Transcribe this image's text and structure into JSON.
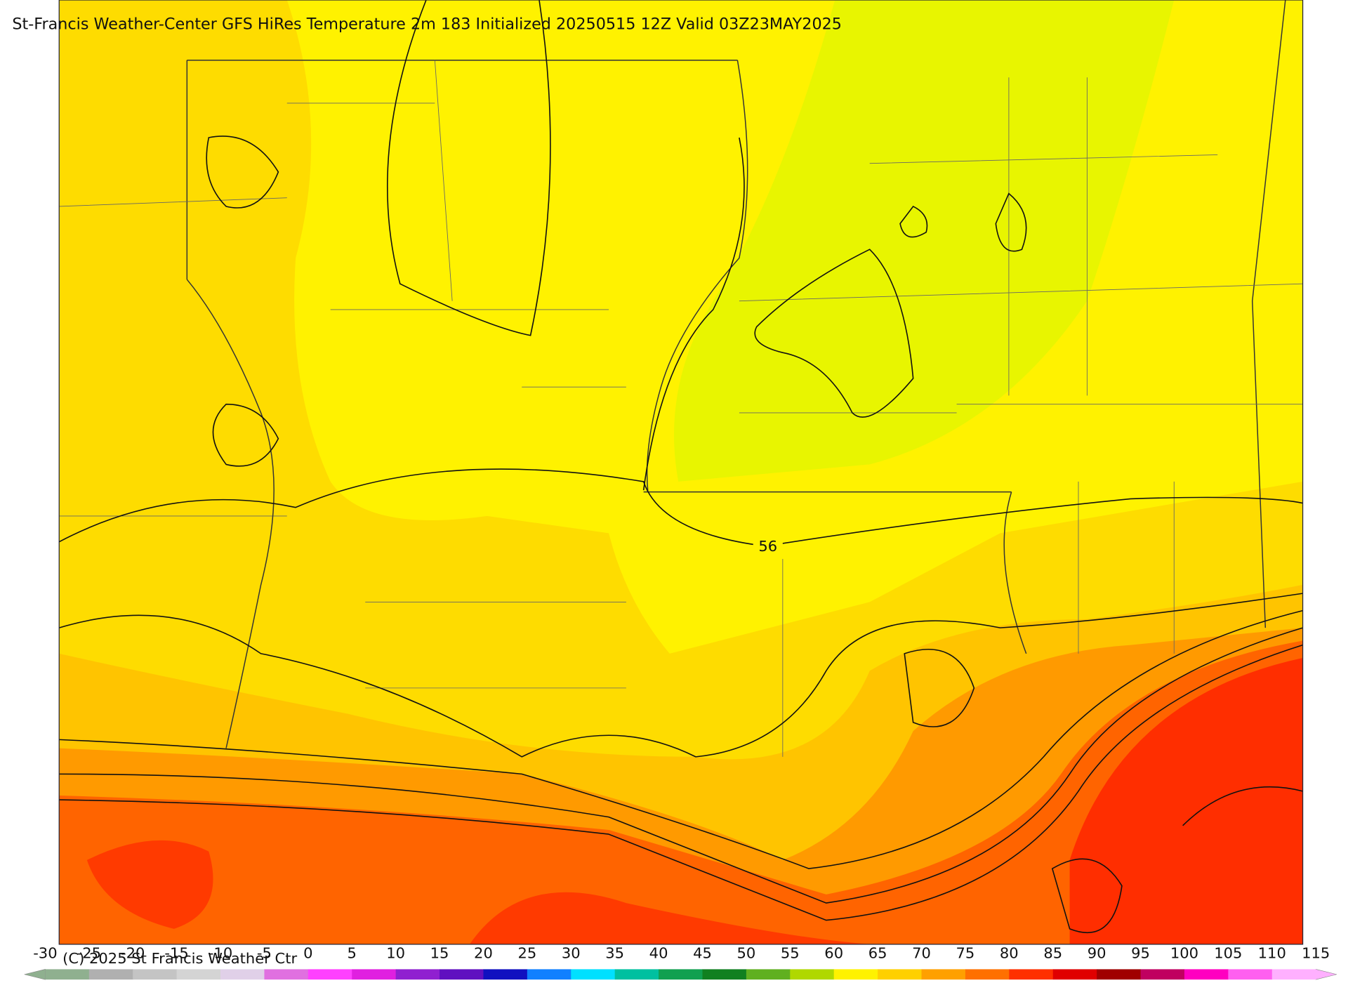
{
  "header": {
    "title": "St-Francis Weather-Center GFS HiRes Temperature 2m  183 Initialized 20250515 12Z Valid 03Z23MAY2025"
  },
  "map": {
    "contour_labels": [
      "56"
    ]
  },
  "footer": {
    "copyright": "(C) 2025 St Francis Weather Ctr"
  },
  "colorbar": {
    "ticks": [
      -30,
      -25,
      -20,
      -15,
      -10,
      -5,
      0,
      5,
      10,
      15,
      20,
      25,
      30,
      35,
      40,
      45,
      50,
      55,
      60,
      65,
      70,
      75,
      80,
      85,
      90,
      95,
      100,
      105,
      110,
      115
    ],
    "colors": [
      "#8fb08f",
      "#b0b0b0",
      "#c4c4c4",
      "#d4d4d4",
      "#e0d0e8",
      "#e070e0",
      "#ff40ff",
      "#e020e0",
      "#9020d0",
      "#6010c0",
      "#1010c0",
      "#1080ff",
      "#00e0ff",
      "#00c0a0",
      "#10a050",
      "#108020",
      "#60b020",
      "#b0d800",
      "#fff200",
      "#ffd000",
      "#ffa000",
      "#ff7000",
      "#ff3000",
      "#e00000",
      "#a00000",
      "#c00060",
      "#ff00c0",
      "#ff60f0",
      "#ffb0ff"
    ]
  }
}
